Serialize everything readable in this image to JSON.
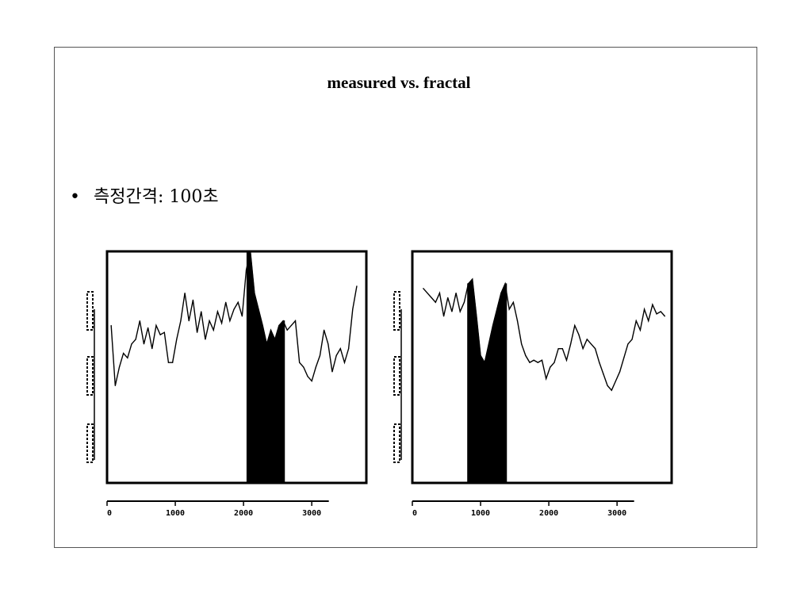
{
  "slide": {
    "title": "measured vs. fractal",
    "bullet_symbol": "•",
    "bullet_text": "측정간격: 100초"
  },
  "chart_data": [
    {
      "type": "line",
      "panel": "left",
      "x_ticks": [
        "0",
        "1000",
        "2000",
        "3000"
      ],
      "xlim": [
        0,
        3800
      ],
      "ylim": [
        0,
        1
      ],
      "shaded_range": [
        2050,
        2600
      ],
      "x": [
        60,
        120,
        180,
        240,
        300,
        360,
        420,
        480,
        540,
        600,
        660,
        720,
        780,
        840,
        900,
        960,
        1020,
        1080,
        1140,
        1200,
        1260,
        1320,
        1380,
        1440,
        1500,
        1560,
        1620,
        1680,
        1740,
        1800,
        1860,
        1920,
        1980,
        2040,
        2100,
        2160,
        2220,
        2280,
        2340,
        2400,
        2460,
        2520,
        2580,
        2640,
        2700,
        2760,
        2820,
        2880,
        2940,
        3000,
        3060,
        3120,
        3180,
        3240,
        3300,
        3360,
        3420,
        3480,
        3540,
        3600,
        3660
      ],
      "values": [
        0.68,
        0.42,
        0.5,
        0.56,
        0.54,
        0.6,
        0.62,
        0.7,
        0.6,
        0.67,
        0.58,
        0.68,
        0.64,
        0.65,
        0.52,
        0.52,
        0.62,
        0.7,
        0.82,
        0.7,
        0.79,
        0.65,
        0.74,
        0.62,
        0.7,
        0.66,
        0.74,
        0.69,
        0.78,
        0.7,
        0.75,
        0.78,
        0.72,
        0.92,
        1.0,
        0.82,
        0.75,
        0.68,
        0.6,
        0.66,
        0.62,
        0.68,
        0.7,
        0.66,
        0.68,
        0.7,
        0.52,
        0.5,
        0.46,
        0.44,
        0.5,
        0.55,
        0.66,
        0.6,
        0.48,
        0.55,
        0.58,
        0.52,
        0.58,
        0.75,
        0.85
      ]
    },
    {
      "type": "line",
      "panel": "right",
      "x_ticks": [
        "0",
        "1000",
        "2000",
        "3000"
      ],
      "xlim": [
        0,
        3800
      ],
      "ylim": [
        0,
        1
      ],
      "shaded_range": [
        810,
        1380
      ],
      "x": [
        160,
        220,
        280,
        340,
        400,
        460,
        520,
        580,
        640,
        700,
        760,
        820,
        880,
        940,
        1000,
        1060,
        1120,
        1180,
        1240,
        1300,
        1360,
        1420,
        1480,
        1540,
        1600,
        1660,
        1720,
        1780,
        1840,
        1900,
        1960,
        2020,
        2080,
        2140,
        2200,
        2260,
        2320,
        2380,
        2440,
        2500,
        2560,
        2620,
        2680,
        2740,
        2800,
        2860,
        2920,
        2980,
        3040,
        3100,
        3160,
        3220,
        3280,
        3340,
        3400,
        3460,
        3520,
        3580,
        3640,
        3700
      ],
      "values": [
        0.84,
        0.82,
        0.8,
        0.78,
        0.82,
        0.72,
        0.8,
        0.74,
        0.82,
        0.74,
        0.78,
        0.86,
        0.88,
        0.72,
        0.55,
        0.52,
        0.6,
        0.68,
        0.75,
        0.82,
        0.86,
        0.75,
        0.78,
        0.7,
        0.6,
        0.55,
        0.52,
        0.53,
        0.52,
        0.53,
        0.45,
        0.5,
        0.52,
        0.58,
        0.58,
        0.53,
        0.6,
        0.68,
        0.64,
        0.58,
        0.62,
        0.6,
        0.58,
        0.52,
        0.47,
        0.42,
        0.4,
        0.44,
        0.48,
        0.54,
        0.6,
        0.62,
        0.7,
        0.66,
        0.75,
        0.7,
        0.77,
        0.73,
        0.74,
        0.72
      ]
    }
  ]
}
